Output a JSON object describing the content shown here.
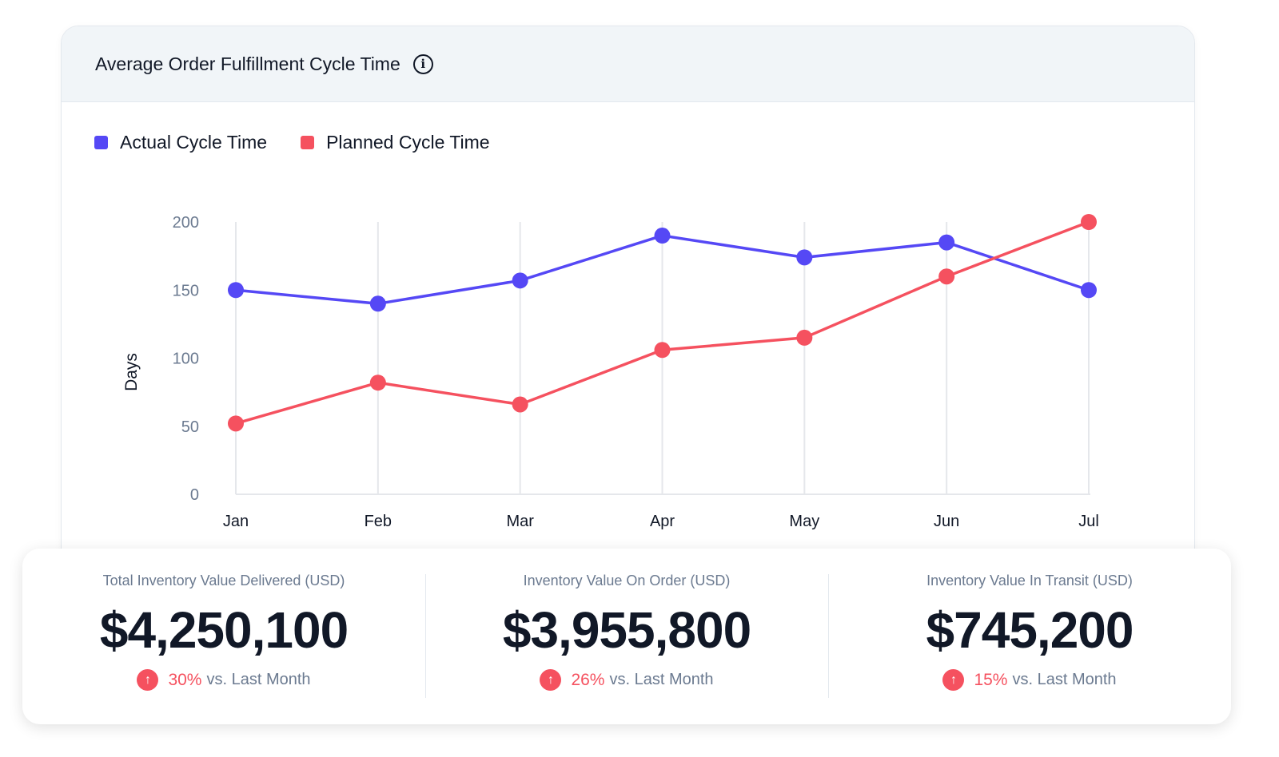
{
  "card": {
    "title": "Average Order Fulfillment Cycle Time",
    "info_icon": "info-icon"
  },
  "chart_data": {
    "type": "line",
    "title": "Average Order Fulfillment Cycle Time",
    "xlabel": "",
    "ylabel": "Days",
    "categories": [
      "Jan",
      "Feb",
      "Mar",
      "Apr",
      "May",
      "Jun",
      "Jul"
    ],
    "ylim": [
      0,
      200
    ],
    "yticks": [
      "0",
      "50",
      "100",
      "150",
      "200"
    ],
    "grid": "vertical",
    "legend": "top-left",
    "series": [
      {
        "name": "Actual Cycle Time",
        "color": "#5548f5",
        "values": [
          150,
          140,
          157,
          190,
          174,
          185,
          150
        ]
      },
      {
        "name": "Planned Cycle Time",
        "color": "#f5515f",
        "values": [
          52,
          82,
          66,
          106,
          115,
          160,
          200
        ]
      }
    ]
  },
  "kpis": [
    {
      "label": "Total Inventory Value Delivered (USD)",
      "value": "$4,250,100",
      "pct": "30%",
      "suffix": "vs. Last Month",
      "icon": "arrow-up-icon"
    },
    {
      "label": "Inventory Value On Order (USD)",
      "value": "$3,955,800",
      "pct": "26%",
      "suffix": "vs. Last Month",
      "icon": "arrow-up-icon"
    },
    {
      "label": "Inventory Value In Transit (USD)",
      "value": "$745,200",
      "pct": "15%",
      "suffix": "vs. Last Month",
      "icon": "arrow-up-icon"
    }
  ]
}
